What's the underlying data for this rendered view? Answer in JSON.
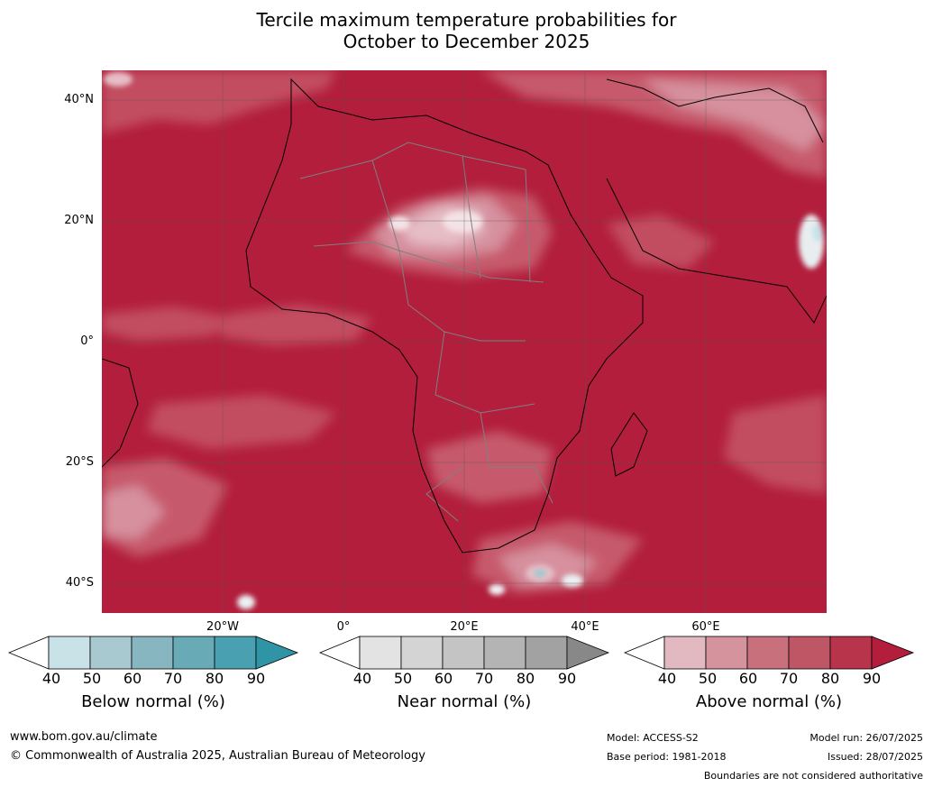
{
  "title_line1": "Tercile maximum temperature probabilities for",
  "title_line2": "October to December 2025",
  "map": {
    "lat_labels": [
      "40°N",
      "20°N",
      "0°",
      "20°S",
      "40°S"
    ],
    "lon_labels": [
      "20°W",
      "0°",
      "20°E",
      "40°E",
      "60°E"
    ],
    "colors": {
      "above_dominant": "#b21e3c",
      "above_mid": "#c65a6c",
      "above_light": "#d6909e",
      "above_pale": "#e6bec6",
      "below_light": "#c8e2e8",
      "ocean_outline": "#000000",
      "country_border": "#808080"
    }
  },
  "colorbars": [
    {
      "name": "Below normal (%)",
      "ticks": [
        "40",
        "50",
        "60",
        "70",
        "80",
        "90"
      ],
      "colors": [
        "#ffffff",
        "#c9e2e8",
        "#a8c9cf",
        "#88b6c0",
        "#68aab6",
        "#48a0b0",
        "#2f95a6"
      ]
    },
    {
      "name": "Near normal (%)",
      "ticks": [
        "40",
        "50",
        "60",
        "70",
        "80",
        "90"
      ],
      "colors": [
        "#ffffff",
        "#e3e3e3",
        "#d4d4d4",
        "#c4c4c4",
        "#b4b4b4",
        "#a2a2a2",
        "#888888"
      ]
    },
    {
      "name": "Above normal (%)",
      "ticks": [
        "40",
        "50",
        "60",
        "70",
        "80",
        "90"
      ],
      "colors": [
        "#ffffff",
        "#e2b9c1",
        "#d4939d",
        "#c8717d",
        "#be5666",
        "#b8344b",
        "#b21e3c"
      ]
    }
  ],
  "footer": {
    "url": "www.bom.gov.au/climate",
    "copyright": "© Commonwealth of Australia 2025, Australian Bureau of Meteorology",
    "model": "Model: ACCESS-S2",
    "base_period": "Base period: 1981-2018",
    "model_run": "Model run: 26/07/2025",
    "issued": "Issued: 28/07/2025",
    "disclaimer": "Boundaries are not considered authoritative"
  }
}
